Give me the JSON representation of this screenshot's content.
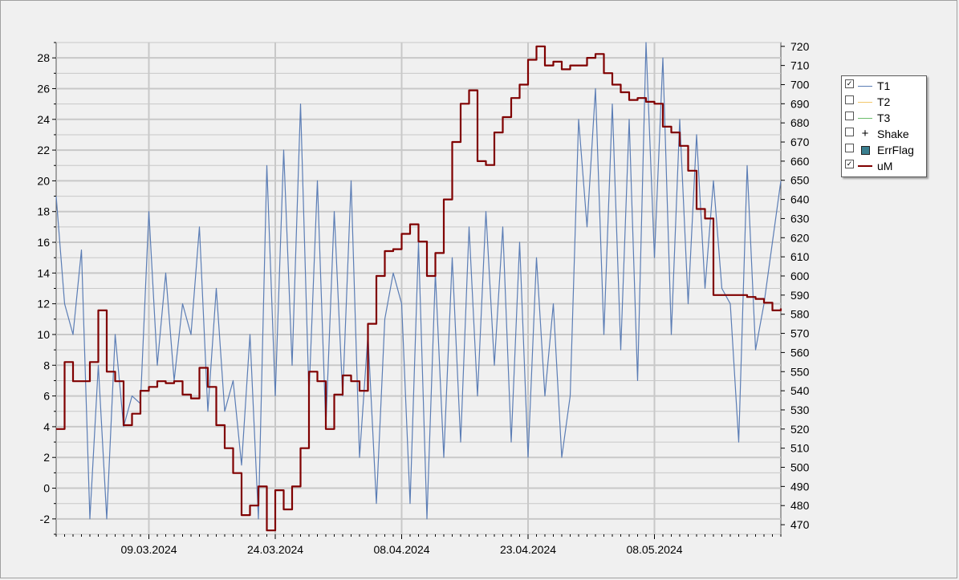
{
  "colors": {
    "T1": "#5b7db5",
    "T2": "#f2c86b",
    "T3": "#6bbd6b",
    "uM": "#800000",
    "ErrFlag": "#3a7f8f",
    "plot_bg": "#f0f0f0",
    "grid": "#c8c8c8"
  },
  "legend": {
    "items": [
      {
        "label": "T1",
        "checked": true,
        "check_mark": "✓",
        "symbol": "line",
        "color_key": "T1"
      },
      {
        "label": "T2",
        "checked": false,
        "check_mark": "",
        "symbol": "line",
        "color_key": "T2"
      },
      {
        "label": "T3",
        "checked": false,
        "check_mark": "",
        "symbol": "line",
        "color_key": "T3"
      },
      {
        "label": "Shake",
        "checked": false,
        "check_mark": "",
        "symbol": "plus",
        "symbol_text": "+",
        "color_key": "T1"
      },
      {
        "label": "ErrFlag",
        "checked": false,
        "check_mark": "",
        "symbol": "box",
        "color_key": "ErrFlag"
      },
      {
        "label": "uM",
        "checked": true,
        "check_mark": "✓",
        "symbol": "thick-line",
        "color_key": "uM"
      }
    ]
  },
  "chart_data": {
    "type": "line",
    "title": "",
    "xlabel": "",
    "ylabel": "",
    "x_range": [
      "2024-02-27",
      "2024-05-23"
    ],
    "x_ticks": [
      "09.03.2024",
      "24.03.2024",
      "08.04.2024",
      "23.04.2024",
      "08.05.2024"
    ],
    "y_left_range": [
      -3,
      29
    ],
    "y_left_ticks": [
      -2,
      0,
      2,
      4,
      6,
      8,
      10,
      12,
      14,
      16,
      18,
      20,
      22,
      24,
      26,
      28
    ],
    "y_right_range": [
      465,
      722
    ],
    "y_right_ticks": [
      470,
      480,
      490,
      500,
      510,
      520,
      530,
      540,
      550,
      560,
      570,
      580,
      590,
      600,
      610,
      620,
      630,
      640,
      650,
      660,
      670,
      680,
      690,
      700,
      710,
      720
    ],
    "grid": true,
    "legend_position": "right",
    "series": [
      {
        "name": "T1",
        "axis": "left",
        "points": [
          [
            "2024-02-27",
            19
          ],
          [
            "2024-02-28",
            12
          ],
          [
            "2024-02-29",
            10
          ],
          [
            "2024-03-01",
            15.5
          ],
          [
            "2024-03-02",
            -2
          ],
          [
            "2024-03-03",
            8
          ],
          [
            "2024-03-04",
            -2
          ],
          [
            "2024-03-05",
            10
          ],
          [
            "2024-03-06",
            4
          ],
          [
            "2024-03-07",
            6
          ],
          [
            "2024-03-08",
            5.5
          ],
          [
            "2024-03-09",
            18
          ],
          [
            "2024-03-10",
            8
          ],
          [
            "2024-03-11",
            14
          ],
          [
            "2024-03-12",
            7
          ],
          [
            "2024-03-13",
            12
          ],
          [
            "2024-03-14",
            10
          ],
          [
            "2024-03-15",
            17
          ],
          [
            "2024-03-16",
            5
          ],
          [
            "2024-03-17",
            13
          ],
          [
            "2024-03-18",
            5
          ],
          [
            "2024-03-19",
            7
          ],
          [
            "2024-03-20",
            1.5
          ],
          [
            "2024-03-21",
            10
          ],
          [
            "2024-03-22",
            -2
          ],
          [
            "2024-03-23",
            21
          ],
          [
            "2024-03-24",
            6
          ],
          [
            "2024-03-25",
            22
          ],
          [
            "2024-03-26",
            8
          ],
          [
            "2024-03-27",
            25
          ],
          [
            "2024-03-28",
            6
          ],
          [
            "2024-03-29",
            20
          ],
          [
            "2024-03-30",
            4
          ],
          [
            "2024-03-31",
            18
          ],
          [
            "2024-04-01",
            6
          ],
          [
            "2024-04-02",
            20
          ],
          [
            "2024-04-03",
            2
          ],
          [
            "2024-04-04",
            10
          ],
          [
            "2024-04-05",
            -1
          ],
          [
            "2024-04-06",
            11
          ],
          [
            "2024-04-07",
            14
          ],
          [
            "2024-04-08",
            12
          ],
          [
            "2024-04-09",
            -1
          ],
          [
            "2024-04-10",
            16
          ],
          [
            "2024-04-11",
            -2
          ],
          [
            "2024-04-12",
            14
          ],
          [
            "2024-04-13",
            2
          ],
          [
            "2024-04-14",
            15
          ],
          [
            "2024-04-15",
            3
          ],
          [
            "2024-04-16",
            17
          ],
          [
            "2024-04-17",
            6
          ],
          [
            "2024-04-18",
            18
          ],
          [
            "2024-04-19",
            8
          ],
          [
            "2024-04-20",
            17
          ],
          [
            "2024-04-21",
            3
          ],
          [
            "2024-04-22",
            16
          ],
          [
            "2024-04-23",
            2
          ],
          [
            "2024-04-24",
            15
          ],
          [
            "2024-04-25",
            6
          ],
          [
            "2024-04-26",
            12
          ],
          [
            "2024-04-27",
            2
          ],
          [
            "2024-04-28",
            6
          ],
          [
            "2024-04-29",
            24
          ],
          [
            "2024-04-30",
            17
          ],
          [
            "2024-05-01",
            26
          ],
          [
            "2024-05-02",
            10
          ],
          [
            "2024-05-03",
            25
          ],
          [
            "2024-05-04",
            9
          ],
          [
            "2024-05-05",
            24
          ],
          [
            "2024-05-06",
            7
          ],
          [
            "2024-05-07",
            29
          ],
          [
            "2024-05-08",
            15
          ],
          [
            "2024-05-09",
            28
          ],
          [
            "2024-05-10",
            10
          ],
          [
            "2024-05-11",
            24
          ],
          [
            "2024-05-12",
            12
          ],
          [
            "2024-05-13",
            23
          ],
          [
            "2024-05-14",
            13
          ],
          [
            "2024-05-15",
            20
          ],
          [
            "2024-05-16",
            13
          ],
          [
            "2024-05-17",
            12
          ],
          [
            "2024-05-18",
            3
          ],
          [
            "2024-05-19",
            21
          ],
          [
            "2024-05-20",
            9
          ],
          [
            "2024-05-21",
            12
          ],
          [
            "2024-05-22",
            16
          ],
          [
            "2024-05-23",
            20
          ]
        ]
      },
      {
        "name": "uM",
        "axis": "right",
        "points": [
          [
            "2024-02-27",
            520
          ],
          [
            "2024-02-28",
            555
          ],
          [
            "2024-02-29",
            545
          ],
          [
            "2024-03-01",
            545
          ],
          [
            "2024-03-02",
            555
          ],
          [
            "2024-03-03",
            582
          ],
          [
            "2024-03-04",
            550
          ],
          [
            "2024-03-05",
            545
          ],
          [
            "2024-03-06",
            522
          ],
          [
            "2024-03-07",
            528
          ],
          [
            "2024-03-08",
            540
          ],
          [
            "2024-03-09",
            542
          ],
          [
            "2024-03-10",
            545
          ],
          [
            "2024-03-11",
            544
          ],
          [
            "2024-03-12",
            545
          ],
          [
            "2024-03-13",
            538
          ],
          [
            "2024-03-14",
            536
          ],
          [
            "2024-03-15",
            552
          ],
          [
            "2024-03-16",
            542
          ],
          [
            "2024-03-17",
            522
          ],
          [
            "2024-03-18",
            510
          ],
          [
            "2024-03-19",
            497
          ],
          [
            "2024-03-20",
            475
          ],
          [
            "2024-03-21",
            480
          ],
          [
            "2024-03-22",
            490
          ],
          [
            "2024-03-23",
            467
          ],
          [
            "2024-03-24",
            488
          ],
          [
            "2024-03-25",
            478
          ],
          [
            "2024-03-26",
            490
          ],
          [
            "2024-03-27",
            510
          ],
          [
            "2024-03-28",
            550
          ],
          [
            "2024-03-29",
            545
          ],
          [
            "2024-03-30",
            520
          ],
          [
            "2024-03-31",
            538
          ],
          [
            "2024-04-01",
            548
          ],
          [
            "2024-04-02",
            545
          ],
          [
            "2024-04-03",
            540
          ],
          [
            "2024-04-04",
            575
          ],
          [
            "2024-04-05",
            600
          ],
          [
            "2024-04-06",
            613
          ],
          [
            "2024-04-07",
            614
          ],
          [
            "2024-04-08",
            622
          ],
          [
            "2024-04-09",
            627
          ],
          [
            "2024-04-10",
            618
          ],
          [
            "2024-04-11",
            600
          ],
          [
            "2024-04-12",
            612
          ],
          [
            "2024-04-13",
            640
          ],
          [
            "2024-04-14",
            670
          ],
          [
            "2024-04-15",
            690
          ],
          [
            "2024-04-16",
            697
          ],
          [
            "2024-04-17",
            660
          ],
          [
            "2024-04-18",
            658
          ],
          [
            "2024-04-19",
            675
          ],
          [
            "2024-04-20",
            683
          ],
          [
            "2024-04-21",
            693
          ],
          [
            "2024-04-22",
            700
          ],
          [
            "2024-04-23",
            713
          ],
          [
            "2024-04-24",
            720
          ],
          [
            "2024-04-25",
            710
          ],
          [
            "2024-04-26",
            712
          ],
          [
            "2024-04-27",
            708
          ],
          [
            "2024-04-28",
            710
          ],
          [
            "2024-04-29",
            710
          ],
          [
            "2024-04-30",
            714
          ],
          [
            "2024-05-01",
            716
          ],
          [
            "2024-05-02",
            706
          ],
          [
            "2024-05-03",
            700
          ],
          [
            "2024-05-04",
            696
          ],
          [
            "2024-05-05",
            692
          ],
          [
            "2024-05-06",
            693
          ],
          [
            "2024-05-07",
            691
          ],
          [
            "2024-05-08",
            690
          ],
          [
            "2024-05-09",
            678
          ],
          [
            "2024-05-10",
            675
          ],
          [
            "2024-05-11",
            668
          ],
          [
            "2024-05-12",
            655
          ],
          [
            "2024-05-13",
            635
          ],
          [
            "2024-05-14",
            630
          ],
          [
            "2024-05-15",
            590
          ],
          [
            "2024-05-16",
            590
          ],
          [
            "2024-05-17",
            590
          ],
          [
            "2024-05-18",
            590
          ],
          [
            "2024-05-19",
            589
          ],
          [
            "2024-05-20",
            588
          ],
          [
            "2024-05-21",
            586
          ],
          [
            "2024-05-22",
            582
          ],
          [
            "2024-05-23",
            583
          ]
        ]
      }
    ]
  }
}
